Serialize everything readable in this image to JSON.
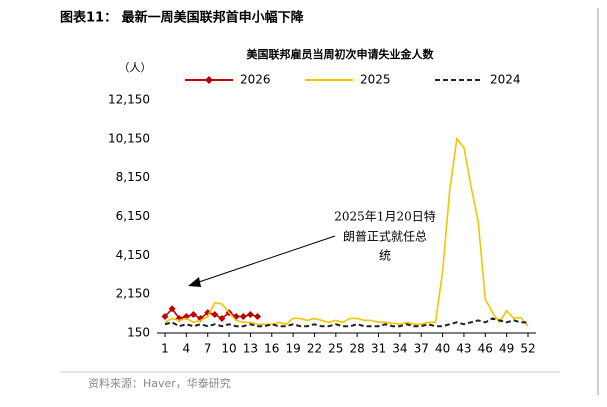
{
  "header": "图表11：  最新一周美国联邦首申小幅下降",
  "source": "资料来源：Haver，华泰研究",
  "chart_data": {
    "type": "line",
    "title": "美国联邦雇员当周初次申请失业金人数",
    "y_unit": "（人）",
    "annotation": [
      "2025年1月20日特",
      "朗普正式就任总",
      "统"
    ],
    "x": [
      1,
      2,
      3,
      4,
      5,
      6,
      7,
      8,
      9,
      10,
      11,
      12,
      13,
      14,
      15,
      16,
      17,
      18,
      19,
      20,
      21,
      22,
      23,
      24,
      25,
      26,
      27,
      28,
      29,
      30,
      31,
      32,
      33,
      34,
      35,
      36,
      37,
      38,
      39,
      40,
      41,
      42,
      43,
      44,
      45,
      46,
      47,
      48,
      49,
      50,
      51,
      52
    ],
    "xlim": [
      1,
      52
    ],
    "xticks": [
      1,
      4,
      7,
      10,
      13,
      16,
      19,
      22,
      25,
      28,
      31,
      34,
      37,
      40,
      43,
      46,
      49,
      52
    ],
    "ylim": [
      150,
      12150
    ],
    "yticks": [
      150,
      {
        "value": 2150,
        "label": "2,150"
      },
      {
        "value": 4150,
        "label": "4,150"
      },
      {
        "value": 6150,
        "label": "6,150"
      },
      {
        "value": 8150,
        "label": "8,150"
      },
      {
        "value": 10150,
        "label": "10,150"
      },
      {
        "value": 12150,
        "label": "12,150"
      }
    ],
    "series": [
      {
        "name": "2026",
        "color": "#c00000",
        "marker": "diamond",
        "values": [
          1000,
          1400,
          900,
          1000,
          1100,
          900,
          1200,
          1100,
          900,
          1200,
          1000,
          1000,
          1100,
          1000,
          null,
          null,
          null,
          null,
          null,
          null,
          null,
          null,
          null,
          null,
          null,
          null,
          null,
          null,
          null,
          null,
          null,
          null,
          null,
          null,
          null,
          null,
          null,
          null,
          null,
          null,
          null,
          null,
          null,
          null,
          null,
          null,
          null,
          null,
          null,
          null,
          null,
          null
        ]
      },
      {
        "name": "2025",
        "color": "#f5c400",
        "values": [
          700,
          900,
          800,
          900,
          700,
          800,
          1000,
          1700,
          1650,
          1200,
          800,
          700,
          700,
          600,
          600,
          600,
          700,
          600,
          900,
          900,
          800,
          900,
          800,
          700,
          800,
          700,
          900,
          900,
          800,
          800,
          700,
          700,
          650,
          600,
          700,
          600,
          600,
          700,
          700,
          3300,
          7500,
          10150,
          9700,
          7700,
          5900,
          1900,
          1200,
          700,
          1300,
          900,
          950,
          500
        ]
      },
      {
        "name": "2024",
        "color": "#222222",
        "dash": true,
        "values": [
          600,
          700,
          500,
          600,
          500,
          600,
          500,
          600,
          500,
          600,
          500,
          500,
          600,
          500,
          500,
          600,
          500,
          500,
          600,
          500,
          500,
          600,
          500,
          500,
          600,
          500,
          500,
          600,
          500,
          500,
          500,
          600,
          500,
          500,
          600,
          500,
          500,
          600,
          500,
          500,
          600,
          700,
          600,
          700,
          800,
          700,
          900,
          800,
          700,
          800,
          700,
          700
        ]
      }
    ]
  }
}
